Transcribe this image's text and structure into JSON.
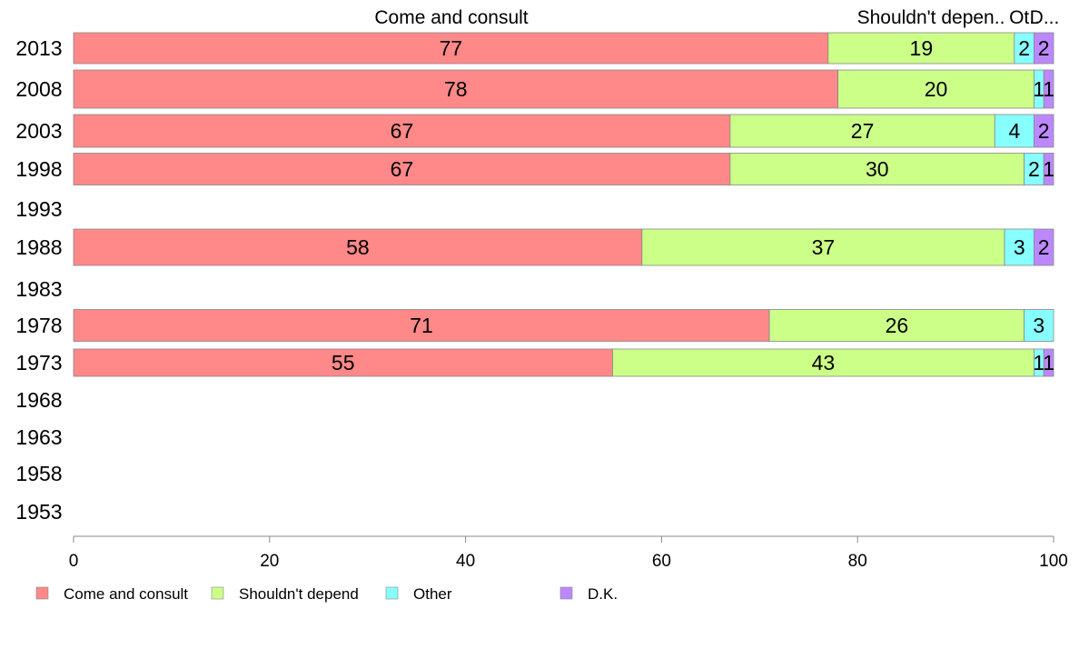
{
  "chart_data": {
    "type": "bar",
    "orientation": "horizontal",
    "stacked": true,
    "title": "",
    "xlabel": "",
    "ylabel": "",
    "xlim": [
      0,
      100
    ],
    "grid": false,
    "legend_position": "bottom-left",
    "x_ticks": [
      "0",
      "20",
      "40",
      "60",
      "80",
      "100"
    ],
    "categories": [
      "2013",
      "2008",
      "2003",
      "1998",
      "1993",
      "1988",
      "1983",
      "1978",
      "1973",
      "1968",
      "1963",
      "1958",
      "1953"
    ],
    "top_labels": [
      "Come and consult",
      "Shouldn't depen..",
      "Ot..",
      "D..."
    ],
    "series": [
      {
        "name": "Come and consult",
        "color": "#ff8888",
        "values": [
          77,
          78,
          67,
          67,
          null,
          58,
          null,
          71,
          55,
          null,
          null,
          null,
          null
        ]
      },
      {
        "name": "Shouldn't depend",
        "color": "#ccff88",
        "values": [
          19,
          20,
          27,
          30,
          null,
          37,
          null,
          26,
          43,
          null,
          null,
          null,
          null
        ]
      },
      {
        "name": "Other",
        "color": "#88ffff",
        "values": [
          2,
          1,
          4,
          2,
          null,
          3,
          null,
          3,
          1,
          null,
          null,
          null,
          null
        ]
      },
      {
        "name": "D.K.",
        "color": "#bb88ff",
        "values": [
          2,
          1,
          2,
          1,
          null,
          2,
          null,
          0,
          1,
          null,
          null,
          null,
          null
        ]
      }
    ]
  }
}
